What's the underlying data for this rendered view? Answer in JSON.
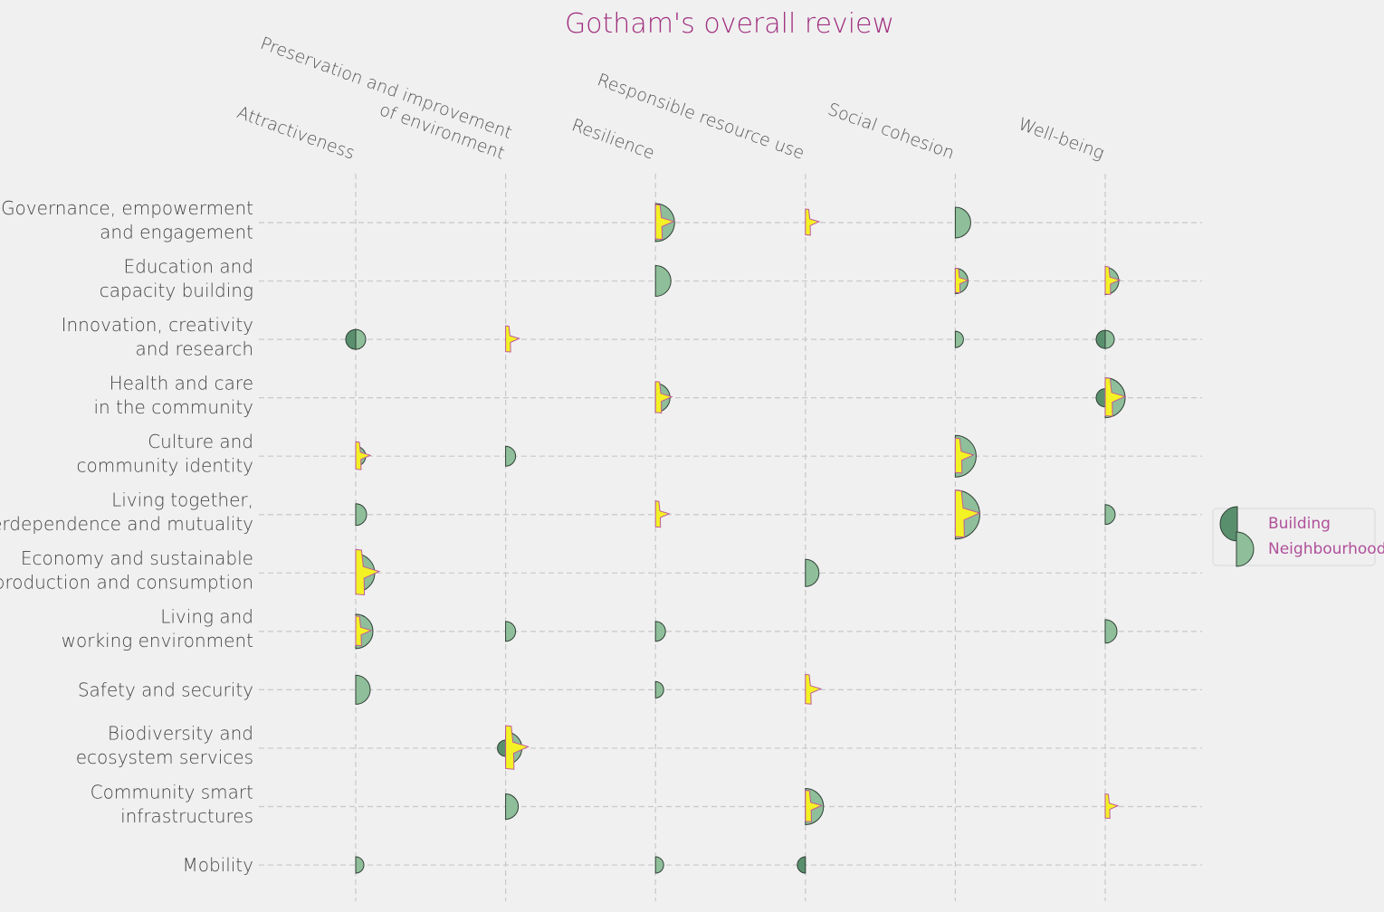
{
  "chart_data": {
    "type": "scatter",
    "title": "Gotham's overall review",
    "columns": [
      [
        "Attractiveness"
      ],
      [
        "Preservation and improvement",
        "of environment"
      ],
      [
        "Resilience"
      ],
      [
        "Responsible resource use"
      ],
      [
        "Social cohesion"
      ],
      [
        "Well-being"
      ]
    ],
    "rows": [
      [
        "Governance, empowerment",
        "and engagement"
      ],
      [
        "Education and",
        "capacity building"
      ],
      [
        "Innovation, creativity",
        "and research"
      ],
      [
        "Health and care",
        "in the community"
      ],
      [
        "Culture and",
        "community identity"
      ],
      [
        "Living together,",
        "interdependence and mutuality"
      ],
      [
        "Economy and sustainable",
        "production and consumption"
      ],
      [
        "Living and",
        "working environment"
      ],
      [
        "Safety and security"
      ],
      [
        "Biodiversity and",
        "ecosystem services"
      ],
      [
        "Community smart",
        "infrastructures"
      ],
      [
        "Mobility"
      ]
    ],
    "legend": {
      "position": "right",
      "entries": [
        "Building",
        "Neighbourhood"
      ]
    },
    "colors": {
      "building": "#5a8f6e",
      "neighbourhood": "#8fbf9a",
      "star": "#f2f224",
      "star_edge": "#c0589a",
      "title": "#a0307f"
    },
    "points": [
      {
        "row": 0,
        "col": 2,
        "building": 0,
        "neighbourhood": 21,
        "star": 20
      },
      {
        "row": 0,
        "col": 3,
        "building": 0,
        "neighbourhood": 0,
        "star": 15
      },
      {
        "row": 0,
        "col": 4,
        "building": 0,
        "neighbourhood": 17,
        "star": 0
      },
      {
        "row": 1,
        "col": 2,
        "building": 0,
        "neighbourhood": 17,
        "star": 0
      },
      {
        "row": 1,
        "col": 4,
        "building": 0,
        "neighbourhood": 14,
        "star": 14
      },
      {
        "row": 1,
        "col": 5,
        "building": 0,
        "neighbourhood": 15,
        "star": 16
      },
      {
        "row": 2,
        "col": 0,
        "building": 11,
        "neighbourhood": 11,
        "star": 0
      },
      {
        "row": 2,
        "col": 1,
        "building": 0,
        "neighbourhood": 0,
        "star": 15
      },
      {
        "row": 2,
        "col": 4,
        "building": 0,
        "neighbourhood": 9,
        "star": 0
      },
      {
        "row": 2,
        "col": 5,
        "building": 10,
        "neighbourhood": 10,
        "star": 0
      },
      {
        "row": 3,
        "col": 2,
        "building": 0,
        "neighbourhood": 16,
        "star": 18
      },
      {
        "row": 3,
        "col": 5,
        "building": 10,
        "neighbourhood": 22,
        "star": 22
      },
      {
        "row": 4,
        "col": 0,
        "building": 0,
        "neighbourhood": 11,
        "star": 16
      },
      {
        "row": 4,
        "col": 1,
        "building": 0,
        "neighbourhood": 11,
        "star": 0
      },
      {
        "row": 4,
        "col": 4,
        "building": 0,
        "neighbourhood": 23,
        "star": 20
      },
      {
        "row": 5,
        "col": 0,
        "building": 0,
        "neighbourhood": 12,
        "star": 0
      },
      {
        "row": 5,
        "col": 2,
        "building": 0,
        "neighbourhood": 0,
        "star": 15
      },
      {
        "row": 5,
        "col": 4,
        "building": 0,
        "neighbourhood": 27,
        "star": 27
      },
      {
        "row": 5,
        "col": 5,
        "building": 0,
        "neighbourhood": 11,
        "star": 0
      },
      {
        "row": 6,
        "col": 0,
        "building": 0,
        "neighbourhood": 21,
        "star": 26
      },
      {
        "row": 6,
        "col": 3,
        "building": 0,
        "neighbourhood": 15,
        "star": 0
      },
      {
        "row": 7,
        "col": 0,
        "building": 0,
        "neighbourhood": 19,
        "star": 17
      },
      {
        "row": 7,
        "col": 1,
        "building": 0,
        "neighbourhood": 11,
        "star": 0
      },
      {
        "row": 7,
        "col": 2,
        "building": 0,
        "neighbourhood": 11,
        "star": 0
      },
      {
        "row": 7,
        "col": 5,
        "building": 0,
        "neighbourhood": 13,
        "star": 0
      },
      {
        "row": 8,
        "col": 0,
        "building": 0,
        "neighbourhood": 16,
        "star": 0
      },
      {
        "row": 8,
        "col": 2,
        "building": 0,
        "neighbourhood": 9,
        "star": 0
      },
      {
        "row": 8,
        "col": 3,
        "building": 0,
        "neighbourhood": 0,
        "star": 17
      },
      {
        "row": 9,
        "col": 1,
        "building": 9,
        "neighbourhood": 18,
        "star": 25
      },
      {
        "row": 10,
        "col": 1,
        "building": 0,
        "neighbourhood": 14,
        "star": 0
      },
      {
        "row": 10,
        "col": 3,
        "building": 0,
        "neighbourhood": 20,
        "star": 18
      },
      {
        "row": 10,
        "col": 5,
        "building": 0,
        "neighbourhood": 0,
        "star": 14
      },
      {
        "row": 11,
        "col": 0,
        "building": 0,
        "neighbourhood": 9,
        "star": 0
      },
      {
        "row": 11,
        "col": 2,
        "building": 0,
        "neighbourhood": 9,
        "star": 0
      },
      {
        "row": 11,
        "col": 3,
        "building": 9,
        "neighbourhood": 0,
        "star": 0
      }
    ]
  }
}
